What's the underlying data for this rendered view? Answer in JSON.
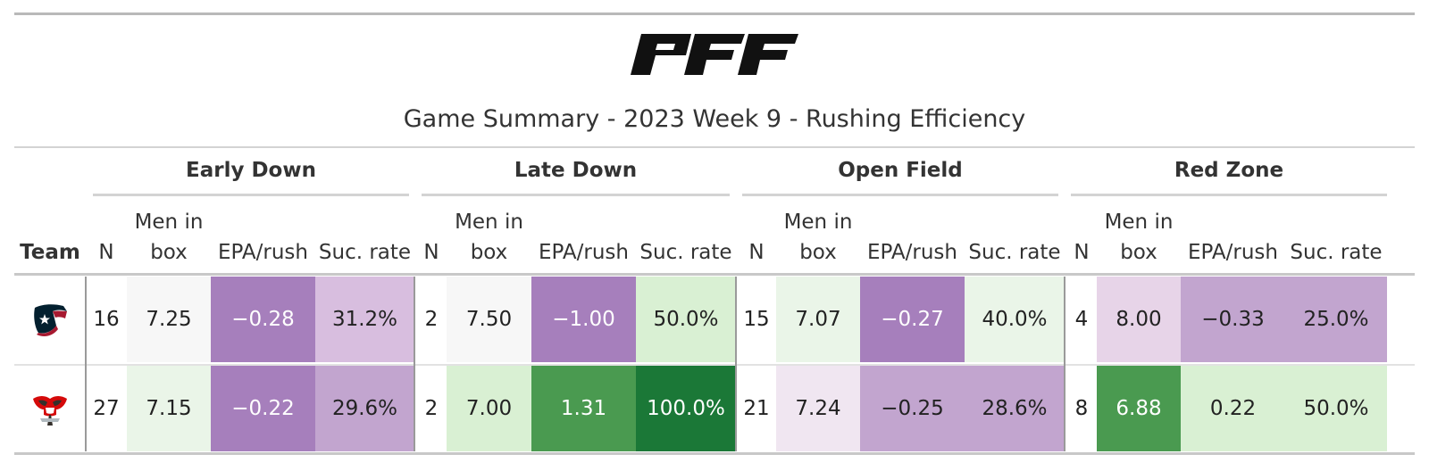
{
  "title": "Game Summary - 2023 Week 9 - Rushing Efficiency",
  "groups": [
    "Early Down",
    "Late Down",
    "Open Field",
    "Red Zone"
  ],
  "columns": {
    "team": "Team",
    "n": "N",
    "men_in_box_line1": "Men in",
    "men_in_box_line2": "box",
    "epa": "EPA/rush",
    "suc": "Suc. rate"
  },
  "rows": [
    {
      "team_icon": "texans-logo-icon",
      "early": {
        "n": "16",
        "men_in_box": "7.25",
        "epa": "−0.28",
        "suc": "31.2%"
      },
      "late": {
        "n": "2",
        "men_in_box": "7.50",
        "epa": "−1.00",
        "suc": "50.0%"
      },
      "open": {
        "n": "15",
        "men_in_box": "7.07",
        "epa": "−0.27",
        "suc": "40.0%"
      },
      "red": {
        "n": "4",
        "men_in_box": "8.00",
        "epa": "−0.33",
        "suc": "25.0%"
      }
    },
    {
      "team_icon": "buccaneers-logo-icon",
      "early": {
        "n": "27",
        "men_in_box": "7.15",
        "epa": "−0.22",
        "suc": "29.6%"
      },
      "late": {
        "n": "2",
        "men_in_box": "7.00",
        "epa": "1.31",
        "suc": "100.0%"
      },
      "open": {
        "n": "21",
        "men_in_box": "7.24",
        "epa": "−0.25",
        "suc": "28.6%"
      },
      "red": {
        "n": "8",
        "men_in_box": "6.88",
        "epa": "0.22",
        "suc": "50.0%"
      }
    }
  ],
  "cell_colors": {
    "r0": {
      "early": {
        "men_in_box": "#f7f7f7",
        "epa": "#a67fbc",
        "suc": "#d8bedf"
      },
      "late": {
        "men_in_box": "#f7f7f7",
        "epa": "#a67fbc",
        "suc": "#d9f0d3"
      },
      "open": {
        "men_in_box": "#eaf5e8",
        "epa": "#a67fbc",
        "suc": "#eaf5e8"
      },
      "red": {
        "men_in_box": "#e7d4e8",
        "epa": "#c2a5cf",
        "suc": "#c2a5cf"
      }
    },
    "r1": {
      "early": {
        "men_in_box": "#eaf5e8",
        "epa": "#a67fbc",
        "suc": "#c2a5cf"
      },
      "late": {
        "men_in_box": "#d9f0d3",
        "epa": "#4a9a50",
        "suc": "#1b7837"
      },
      "open": {
        "men_in_box": "#f0e6f1",
        "epa": "#c2a5cf",
        "suc": "#c2a5cf"
      },
      "red": {
        "men_in_box": "#4a9a50",
        "epa": "#d9f0d3",
        "suc": "#d9f0d3"
      }
    }
  }
}
